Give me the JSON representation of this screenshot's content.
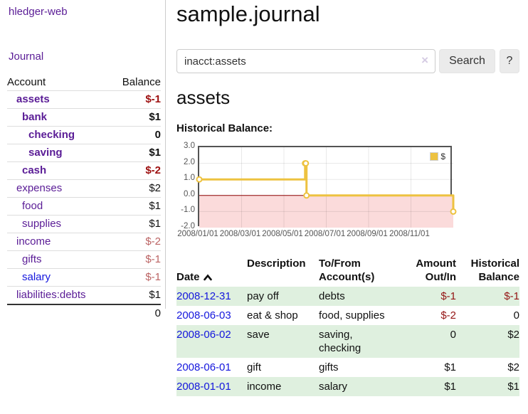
{
  "app": {
    "brand": "hledger-web"
  },
  "sidebar": {
    "nav": [
      {
        "label": "Journal"
      }
    ],
    "accounts_table": {
      "headers": {
        "account": "Account",
        "balance": "Balance"
      },
      "rows": [
        {
          "name": "assets",
          "depth": 1,
          "bold": true,
          "balance": "$-1",
          "balance_style": "neg-strong"
        },
        {
          "name": "bank",
          "depth": 2,
          "bold": true,
          "balance": "$1",
          "balance_style": "pos"
        },
        {
          "name": "checking",
          "depth": 3,
          "bold": true,
          "balance": "0",
          "balance_style": "pos"
        },
        {
          "name": "saving",
          "depth": 3,
          "bold": true,
          "balance": "$1",
          "balance_style": "pos"
        },
        {
          "name": "cash",
          "depth": 2,
          "bold": true,
          "balance": "$-2",
          "balance_style": "neg-strong"
        },
        {
          "name": "expenses",
          "depth": 1,
          "bold": false,
          "balance": "$2",
          "balance_style": "pos"
        },
        {
          "name": "food",
          "depth": 2,
          "bold": false,
          "balance": "$1",
          "balance_style": "pos"
        },
        {
          "name": "supplies",
          "depth": 2,
          "bold": false,
          "balance": "$1",
          "balance_style": "pos"
        },
        {
          "name": "income",
          "depth": 1,
          "bold": false,
          "balance": "$-2",
          "balance_style": "neg-soft"
        },
        {
          "name": "gifts",
          "depth": 2,
          "bold": false,
          "balance": "$-1",
          "balance_style": "neg-soft"
        },
        {
          "name": "salary",
          "depth": 2,
          "bold": false,
          "balance": "$-1",
          "balance_style": "neg-soft",
          "link_style": "blue"
        },
        {
          "name": "liabilities:debts",
          "depth": 1,
          "bold": false,
          "balance": "$1",
          "balance_style": "pos"
        }
      ],
      "total": "0"
    }
  },
  "header": {
    "title": "sample.journal"
  },
  "search": {
    "value": "inacct:assets",
    "clear_icon": "×",
    "button_label": "Search",
    "help_label": "?"
  },
  "account_page": {
    "title": "assets",
    "chart_heading": "Historical Balance:"
  },
  "chart_data": {
    "type": "line",
    "title": "Historical Balance",
    "step": true,
    "series": [
      {
        "name": "$",
        "color": "#edc240",
        "points": [
          [
            "2008/01/01",
            1
          ],
          [
            "2008/06/01",
            2
          ],
          [
            "2008/06/02",
            2
          ],
          [
            "2008/06/03",
            0
          ],
          [
            "2008/12/31",
            -1
          ]
        ]
      }
    ],
    "ylim": [
      -2,
      3
    ],
    "yticks": [
      "3.0",
      "2.0",
      "1.0",
      "0.0",
      "-1.0",
      "-2.0"
    ],
    "ytick_values": [
      3,
      2,
      1,
      0,
      -1,
      -2
    ],
    "xlim": [
      "2008/01/01",
      "2009/01/01"
    ],
    "xticks": [
      "2008/01/01",
      "2008/03/01",
      "2008/05/01",
      "2008/07/01",
      "2008/09/01",
      "2008/11/01"
    ],
    "legend": {
      "label": "$",
      "position": "top-right"
    },
    "grid": true,
    "negative_region_color": "#fbdbdb",
    "zero_line_color": "#8b0000"
  },
  "register_table": {
    "headers": {
      "date": "Date",
      "description": "Description",
      "to_from": "To/From\nAccount(s)",
      "amount": "Amount\nOut/In",
      "balance": "Historical\nBalance"
    },
    "sort": {
      "column": "date",
      "direction": "ascending"
    },
    "rows": [
      {
        "date": "2008-12-31",
        "description": "pay off",
        "to_from": "debts",
        "amount": "$-1",
        "amount_neg": true,
        "balance": "$-1",
        "balance_neg": true
      },
      {
        "date": "2008-06-03",
        "description": "eat & shop",
        "to_from": "food, supplies",
        "amount": "$-2",
        "amount_neg": true,
        "balance": "0",
        "balance_neg": false
      },
      {
        "date": "2008-06-02",
        "description": "save",
        "to_from": "saving,\nchecking",
        "amount": "0",
        "amount_neg": false,
        "balance": "$2",
        "balance_neg": false
      },
      {
        "date": "2008-06-01",
        "description": "gift",
        "to_from": "gifts",
        "amount": "$1",
        "amount_neg": false,
        "balance": "$2",
        "balance_neg": false
      },
      {
        "date": "2008-01-01",
        "description": "income",
        "to_from": "salary",
        "amount": "$1",
        "amount_neg": false,
        "balance": "$1",
        "balance_neg": false
      }
    ]
  },
  "colors": {
    "link_purple": "#5a1c96",
    "link_blue": "#1416dd",
    "negative_strong": "#9d0f0f",
    "negative_soft": "#bb6363",
    "negative_table": "#941414",
    "row_stripe_green": "#dff0df",
    "series_gold": "#edc240",
    "negative_region_pink": "#fbdbdb",
    "zero_line_red": "#8b0000",
    "panel_border": "#ccc",
    "chart_border": "#545454"
  }
}
